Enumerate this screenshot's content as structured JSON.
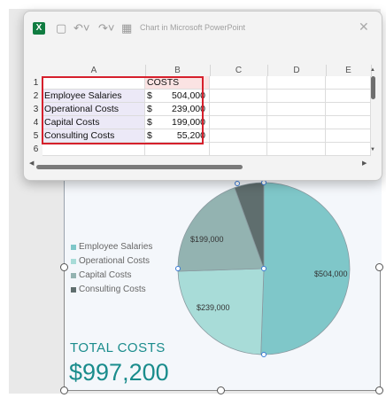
{
  "window": {
    "title": "Chart in Microsoft PowerPoint",
    "app_icon": "excel-icon",
    "toolbar_icons": [
      "save-icon",
      "undo-icon",
      "redo-icon",
      "edit-data-icon",
      "close-icon"
    ]
  },
  "sheet": {
    "columns": [
      "A",
      "B",
      "C",
      "D",
      "E"
    ],
    "row_numbers": [
      "1",
      "2",
      "3",
      "4",
      "5",
      "6"
    ],
    "header_cost": "COSTS",
    "rows": [
      {
        "label": "Employee Salaries",
        "currency": "$",
        "value": "504,000"
      },
      {
        "label": "Operational Costs",
        "currency": "$",
        "value": "239,000"
      },
      {
        "label": "Capital Costs",
        "currency": "$",
        "value": "199,000"
      },
      {
        "label": "Consulting Costs",
        "currency": "$",
        "value": "55,200"
      }
    ]
  },
  "legend": [
    {
      "label": "Employee Salaries",
      "color": "#7fc7c9"
    },
    {
      "label": "Operational Costs",
      "color": "#a8dcd8"
    },
    {
      "label": "Capital Costs",
      "color": "#93b3b1"
    },
    {
      "label": "Consulting Costs",
      "color": "#5f6e6e"
    }
  ],
  "summary": {
    "label": "TOTAL COSTS",
    "value": "$997,200"
  },
  "chart_data": {
    "type": "pie",
    "categories": [
      "Employee Salaries",
      "Operational Costs",
      "Capital Costs",
      "Consulting Costs"
    ],
    "values": [
      504000,
      239000,
      199000,
      55200
    ],
    "data_labels": [
      "$504,000",
      "$239,000",
      "$199,000",
      ""
    ],
    "colors": [
      "#7fc7c9",
      "#a8dcd8",
      "#93b3b1",
      "#5f6e6e"
    ],
    "legend_position": "left"
  }
}
